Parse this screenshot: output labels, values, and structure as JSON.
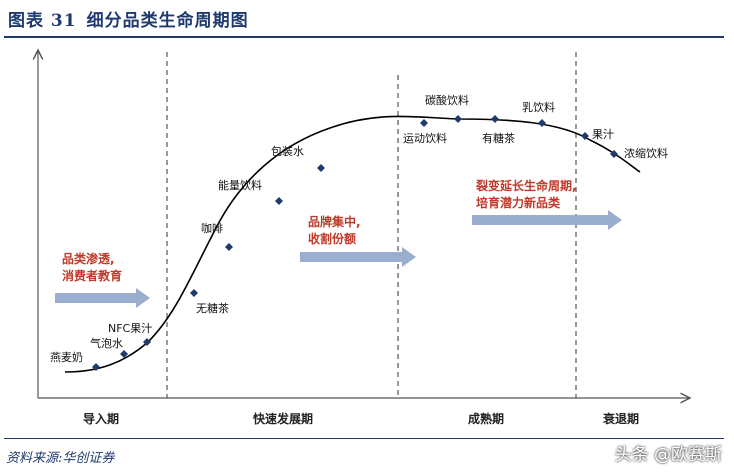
{
  "title": {
    "figure_no": "图表 31",
    "text": "细分品类生命周期图"
  },
  "stages": [
    "导入期",
    "快速发展期",
    "成熟期",
    "衰退期"
  ],
  "products": [
    {
      "name": "燕麦奶"
    },
    {
      "name": "气泡水"
    },
    {
      "name": "NFC果汁"
    },
    {
      "name": "无糖茶"
    },
    {
      "name": "咖啡"
    },
    {
      "name": "能量饮料"
    },
    {
      "name": "包装水"
    },
    {
      "name": "运动饮料"
    },
    {
      "name": "碳酸饮料"
    },
    {
      "name": "有糖茶"
    },
    {
      "name": "乳饮料"
    },
    {
      "name": "果汁"
    },
    {
      "name": "浓缩饮料"
    }
  ],
  "annotations": [
    {
      "lines": [
        "品类渗透,",
        "消费者教育"
      ]
    },
    {
      "lines": [
        "品牌集中,",
        "收割份额"
      ]
    },
    {
      "lines": [
        "裂变延长生命周期,",
        "培育潜力新品类"
      ]
    }
  ],
  "source": "资料来源:华创证券",
  "watermark": "头条 @欧赛斯",
  "colors": {
    "curve": "#000000",
    "marker": "#1f3b6e",
    "arrow": "#9aaed0",
    "annotation": "#c0392b",
    "title": "#1f3b6e"
  }
}
